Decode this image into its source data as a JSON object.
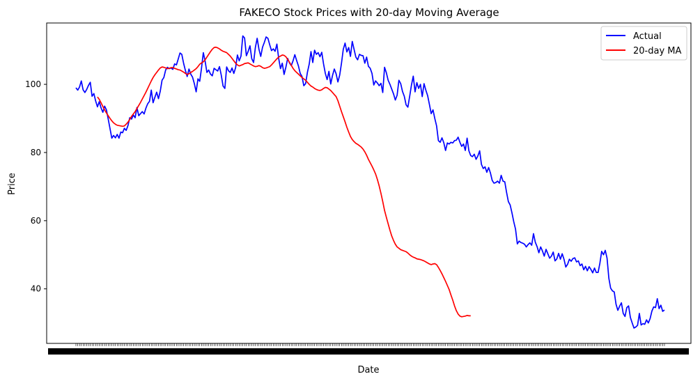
{
  "chart_data": {
    "type": "line",
    "title": "FAKECO Stock Prices with 20-day Moving Average",
    "xlabel": "Date",
    "ylabel": "Price",
    "ylim": [
      24,
      118
    ],
    "yticks": [
      40,
      60,
      80,
      100
    ],
    "legend": {
      "placement": "top-right",
      "entries": [
        "Actual",
        "20-day MA"
      ]
    },
    "grid": false,
    "x_tick_labels": "dense overlapping daily date labels (unreadable)",
    "series": [
      {
        "name": "Actual",
        "color": "#0000ff",
        "values": [
          99.0,
          98.3,
          99.2,
          101.0,
          98.4,
          97.6,
          98.5,
          99.7,
          100.6,
          96.5,
          97.3,
          95.1,
          93.4,
          94.9,
          93.1,
          91.8,
          93.6,
          92.5,
          89.8,
          87.0,
          84.2,
          85.0,
          84.3,
          85.3,
          84.2,
          86.0,
          85.8,
          87.1,
          86.5,
          87.9,
          90.2,
          89.8,
          91.0,
          90.2,
          93.2,
          90.8,
          91.4,
          92.0,
          91.3,
          93.0,
          94.3,
          95.0,
          98.3,
          94.6,
          96.2,
          97.7,
          95.8,
          98.0,
          101.2,
          102.0,
          104.2,
          105.0,
          104.6,
          104.8,
          104.4,
          106.0,
          105.7,
          107.4,
          109.2,
          108.8,
          106.2,
          104.1,
          102.3,
          104.5,
          103.0,
          102.1,
          100.2,
          97.8,
          101.6,
          100.9,
          104.8,
          109.3,
          106.8,
          103.5,
          104.2,
          103.0,
          102.5,
          104.7,
          104.3,
          103.9,
          105.2,
          102.7,
          99.5,
          98.8,
          105.1,
          104.0,
          103.5,
          104.8,
          103.2,
          104.9,
          108.6,
          106.9,
          108.3,
          114.2,
          113.6,
          108.4,
          109.7,
          111.3,
          107.5,
          106.4,
          110.8,
          113.5,
          110.3,
          108.2,
          110.9,
          112.3,
          113.9,
          113.5,
          111.6,
          109.9,
          110.4,
          109.7,
          111.8,
          107.6,
          104.6,
          106.2,
          102.9,
          105.0,
          107.6,
          106.3,
          105.5,
          106.9,
          108.7,
          107.0,
          105.4,
          103.2,
          102.3,
          99.6,
          100.2,
          103.5,
          105.9,
          109.6,
          106.4,
          110.0,
          108.8,
          109.3,
          108.1,
          109.4,
          106.0,
          103.2,
          101.4,
          103.8,
          100.1,
          102.6,
          104.5,
          103.1,
          100.7,
          102.7,
          106.2,
          110.3,
          112.1,
          109.5,
          110.8,
          108.2,
          112.6,
          110.3,
          108.0,
          107.2,
          108.8,
          108.5,
          108.4,
          106.2,
          108.0,
          105.3,
          104.7,
          103.2,
          99.8,
          101.0,
          100.4,
          99.6,
          100.3,
          97.6,
          105.0,
          103.4,
          101.2,
          100.0,
          98.6,
          97.2,
          95.4,
          96.8,
          101.2,
          100.2,
          97.9,
          96.5,
          94.0,
          93.3,
          96.5,
          99.8,
          102.4,
          97.8,
          100.5,
          98.8,
          100.0,
          96.4,
          100.2,
          98.3,
          96.7,
          94.1,
          91.4,
          92.5,
          90.0,
          87.8,
          83.5,
          83.0,
          84.3,
          82.9,
          80.6,
          82.8,
          82.5,
          83.0,
          82.8,
          83.5,
          83.6,
          84.5,
          83.0,
          81.8,
          82.5,
          80.6,
          84.2,
          80.5,
          79.1,
          78.8,
          79.5,
          78.0,
          79.0,
          80.5,
          76.5,
          75.3,
          75.8,
          74.2,
          75.6,
          74.0,
          71.8,
          71.0,
          71.2,
          71.6,
          71.0,
          73.3,
          71.6,
          71.4,
          68.3,
          65.6,
          64.6,
          62.3,
          59.7,
          57.5,
          53.2,
          54.0,
          53.6,
          53.4,
          53.1,
          52.3,
          53.0,
          53.5,
          52.8,
          56.2,
          53.7,
          52.4,
          50.6,
          52.3,
          51.1,
          49.6,
          51.6,
          50.3,
          49.0,
          49.6,
          50.8,
          48.2,
          48.8,
          50.4,
          48.7,
          50.3,
          48.7,
          46.4,
          47.2,
          48.7,
          48.1,
          48.9,
          49.1,
          47.9,
          48.2,
          46.8,
          47.3,
          45.6,
          46.6,
          45.3,
          46.5,
          45.7,
          44.7,
          46.1,
          44.8,
          44.8,
          47.5,
          51.0,
          50.0,
          51.3,
          49.0,
          43.1,
          40.2,
          39.4,
          39.1,
          35.5,
          33.7,
          34.9,
          35.9,
          32.8,
          31.9,
          34.5,
          35.0,
          31.6,
          30.0,
          28.5,
          28.8,
          29.3,
          32.8,
          29.4,
          29.8,
          29.6,
          30.9,
          30.0,
          31.3,
          33.5,
          34.7,
          34.5,
          37.1,
          34.2,
          35.2,
          33.4,
          33.8
        ],
        "start_index": 0
      },
      {
        "name": "20-day MA",
        "color": "#ff0000",
        "values": [
          96.3,
          95.6,
          94.6,
          93.5,
          92.5,
          91.6,
          90.8,
          90.0,
          89.3,
          88.7,
          88.3,
          88.0,
          87.9,
          87.8,
          87.7,
          87.8,
          88.3,
          88.9,
          89.7,
          90.6,
          91.3,
          92.0,
          92.9,
          93.8,
          94.7,
          95.7,
          96.7,
          97.7,
          98.8,
          99.9,
          101.0,
          102.0,
          102.8,
          103.5,
          104.2,
          104.8,
          105.1,
          105.0,
          104.8,
          104.6,
          104.7,
          104.9,
          104.9,
          104.7,
          104.5,
          104.3,
          104.2,
          103.9,
          103.6,
          103.2,
          102.9,
          103.1,
          103.5,
          103.8,
          104.2,
          104.6,
          105.2,
          105.9,
          106.3,
          106.6,
          107.2,
          108.0,
          108.8,
          109.6,
          110.3,
          110.8,
          110.9,
          110.7,
          110.4,
          110.0,
          109.7,
          109.5,
          109.3,
          108.8,
          108.3,
          107.6,
          106.9,
          106.2,
          105.7,
          105.4,
          105.6,
          105.8,
          106.1,
          106.2,
          106.3,
          106.0,
          105.7,
          105.4,
          105.2,
          105.3,
          105.5,
          105.3,
          104.9,
          104.7,
          104.8,
          105.0,
          105.2,
          105.7,
          106.3,
          106.9,
          107.5,
          108.0,
          108.3,
          108.6,
          108.5,
          108.1,
          107.3,
          106.5,
          105.6,
          104.7,
          104.0,
          103.5,
          103.0,
          102.5,
          102.0,
          101.6,
          101.2,
          100.6,
          100.0,
          99.5,
          99.2,
          98.8,
          98.5,
          98.3,
          98.2,
          98.4,
          98.8,
          99.1,
          99.0,
          98.6,
          98.2,
          97.6,
          97.0,
          96.4,
          95.2,
          93.6,
          92.0,
          90.5,
          89.0,
          87.4,
          86.0,
          84.7,
          83.8,
          83.2,
          82.7,
          82.4,
          82.0,
          81.6,
          81.0,
          80.2,
          79.2,
          78.0,
          77.0,
          76.0,
          74.9,
          73.7,
          72.1,
          70.2,
          68.0,
          65.6,
          63.0,
          61.0,
          59.1,
          57.2,
          55.5,
          54.2,
          53.1,
          52.3,
          51.9,
          51.5,
          51.3,
          51.1,
          50.9,
          50.5,
          50.0,
          49.6,
          49.3,
          49.1,
          48.8,
          48.7,
          48.6,
          48.4,
          48.2,
          47.9,
          47.6,
          47.3,
          47.1,
          47.3,
          47.4,
          47.1,
          46.3,
          45.4,
          44.4,
          43.3,
          42.2,
          41.0,
          39.8,
          38.2,
          36.7,
          35.0,
          33.6,
          32.6,
          32.0,
          31.8,
          31.9,
          32.0,
          32.2,
          32.1,
          32.1
        ],
        "start_index": 12
      }
    ]
  }
}
